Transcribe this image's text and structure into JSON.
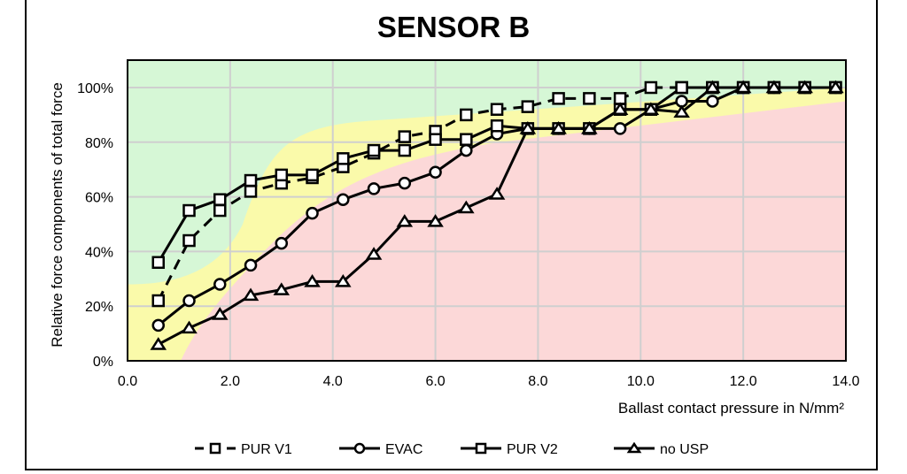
{
  "chart_data": {
    "type": "line",
    "title": "SENSOR B",
    "xlabel": "Ballast contact pressure in N/mm²",
    "ylabel": "Relative force components of total force",
    "xlim": [
      0,
      14
    ],
    "ylim": [
      0,
      110
    ],
    "xticks": [
      "0.0",
      "2.0",
      "4.0",
      "6.0",
      "8.0",
      "10.0",
      "12.0",
      "14.0"
    ],
    "yticks": [
      "0%",
      "20%",
      "40%",
      "60%",
      "80%",
      "100%"
    ],
    "grid": true,
    "legend_position": "bottom",
    "x": [
      0.6,
      1.2,
      1.8,
      2.4,
      3.0,
      3.6,
      4.2,
      4.8,
      5.4,
      6.0,
      6.6,
      7.2,
      7.8,
      8.4,
      9.0,
      9.6,
      10.2,
      10.8,
      11.4,
      12.0,
      12.6,
      13.2,
      13.8
    ],
    "series": [
      {
        "name": "PUR V1",
        "style": "dashed",
        "marker": "square",
        "values": [
          22,
          44,
          55,
          62,
          65,
          67,
          71,
          76,
          82,
          84,
          90,
          92,
          93,
          96,
          96,
          96,
          100,
          100,
          100,
          100,
          100,
          100,
          100
        ]
      },
      {
        "name": "EVAC",
        "style": "solid",
        "marker": "circle",
        "values": [
          13,
          22,
          28,
          35,
          43,
          54,
          59,
          63,
          65,
          69,
          77,
          83,
          85,
          85,
          85,
          85,
          92,
          95,
          95,
          100,
          100,
          100,
          100
        ]
      },
      {
        "name": "PUR V2",
        "style": "solid",
        "marker": "square",
        "values": [
          36,
          55,
          59,
          66,
          68,
          68,
          74,
          77,
          77,
          81,
          81,
          86,
          85,
          85,
          85,
          92,
          92,
          100,
          100,
          100,
          100,
          100,
          100
        ]
      },
      {
        "name": "no USP",
        "style": "solid",
        "marker": "triangle",
        "values": [
          6,
          12,
          17,
          24,
          26,
          29,
          29,
          39,
          51,
          51,
          56,
          61,
          85,
          85,
          85,
          92,
          92,
          91,
          100,
          100,
          100,
          100,
          100
        ]
      }
    ],
    "zones": [
      {
        "name": "green",
        "color": "#d6f7d6"
      },
      {
        "name": "yellow",
        "color": "#fafaaa"
      },
      {
        "name": "red",
        "color": "#fcd8d8"
      }
    ]
  }
}
